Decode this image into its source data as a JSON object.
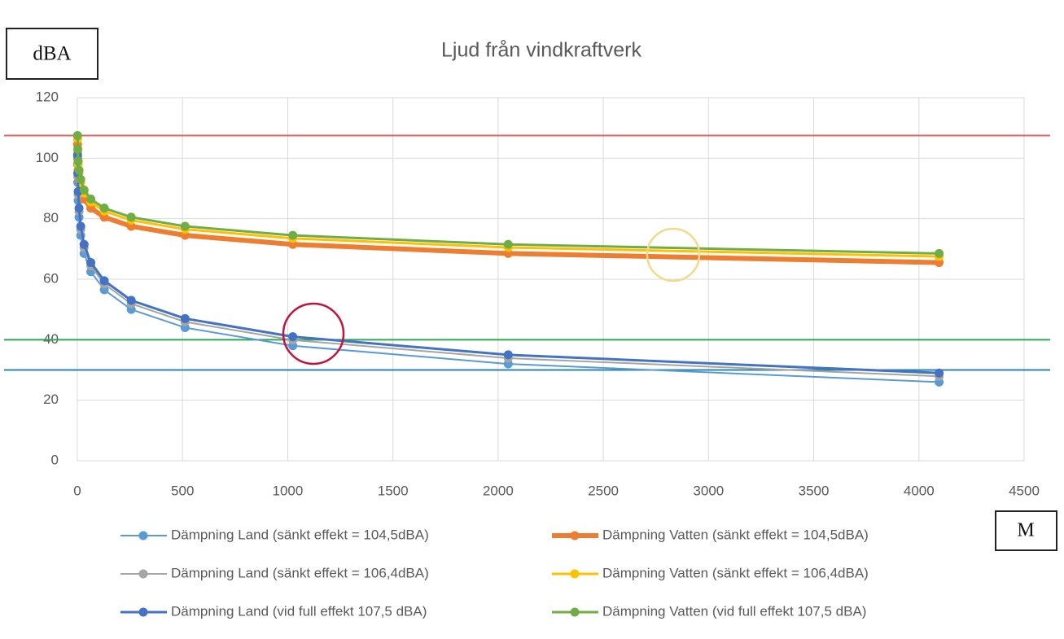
{
  "chart_data": {
    "type": "line",
    "title": "Ljud från vindkraftverk",
    "y_label": "dBA",
    "x_label": "M",
    "x": [
      1,
      2,
      4,
      8,
      16,
      32,
      64,
      128,
      256,
      512,
      1024,
      2048,
      4096
    ],
    "series": [
      {
        "name": "Dämpning Land (sänkt effekt = 104,5dBA)",
        "color": "#5b9bd5",
        "width": 2,
        "values": [
          98,
          92,
          86,
          80.5,
          74.5,
          68.5,
          62.5,
          56.5,
          50,
          44,
          38,
          32,
          26
        ]
      },
      {
        "name": "Dämpning Vatten (sänkt effekt = 104,5dBA)",
        "color": "#ed7d31",
        "width": 6,
        "values": [
          104.5,
          100,
          96,
          93,
          90,
          86.5,
          83.5,
          80.5,
          77.5,
          74.5,
          71.5,
          68.5,
          65.5
        ]
      },
      {
        "name": "Dämpning Land (sänkt effekt = 106,4dBA)",
        "color": "#a5a5a5",
        "width": 2,
        "values": [
          99.9,
          93.9,
          87.9,
          82.4,
          76.4,
          70.4,
          64.4,
          58.4,
          51.9,
          45.9,
          39.9,
          33.9,
          27.9
        ]
      },
      {
        "name": "Dämpning Vatten (sänkt effekt = 106,4dBA)",
        "color": "#ffc000",
        "width": 3,
        "values": [
          106.4,
          102,
          98,
          95,
          92,
          88.5,
          85.5,
          82.5,
          79.5,
          76.5,
          73.5,
          70.5,
          67.5
        ]
      },
      {
        "name": "Dämpning Land (vid full effekt 107,5 dBA)",
        "color": "#4472c4",
        "width": 3,
        "values": [
          101,
          95,
          89,
          83.5,
          77.5,
          71.5,
          65.5,
          59.5,
          53,
          47,
          41,
          35,
          29
        ]
      },
      {
        "name": "Dämpning Vatten (vid full effekt 107,5 dBA)",
        "color": "#70ad47",
        "width": 3,
        "values": [
          107.5,
          103,
          99,
          96,
          93,
          89.5,
          86.5,
          83.5,
          80.5,
          77.5,
          74.5,
          71.5,
          68.5
        ]
      }
    ],
    "reference_lines": [
      {
        "value": 107.5,
        "color": "#e06666"
      },
      {
        "value": 40,
        "color": "#2fa84f"
      },
      {
        "value": 30,
        "color": "#2e86ab"
      }
    ],
    "xlim": [
      0,
      4500
    ],
    "xticks": [
      0,
      500,
      1000,
      1500,
      2000,
      2500,
      3000,
      3500,
      4000,
      4500
    ],
    "ylim": [
      0,
      120
    ],
    "yticks": [
      0,
      20,
      40,
      60,
      80,
      100,
      120
    ],
    "grid": true,
    "legend": "bottom"
  }
}
